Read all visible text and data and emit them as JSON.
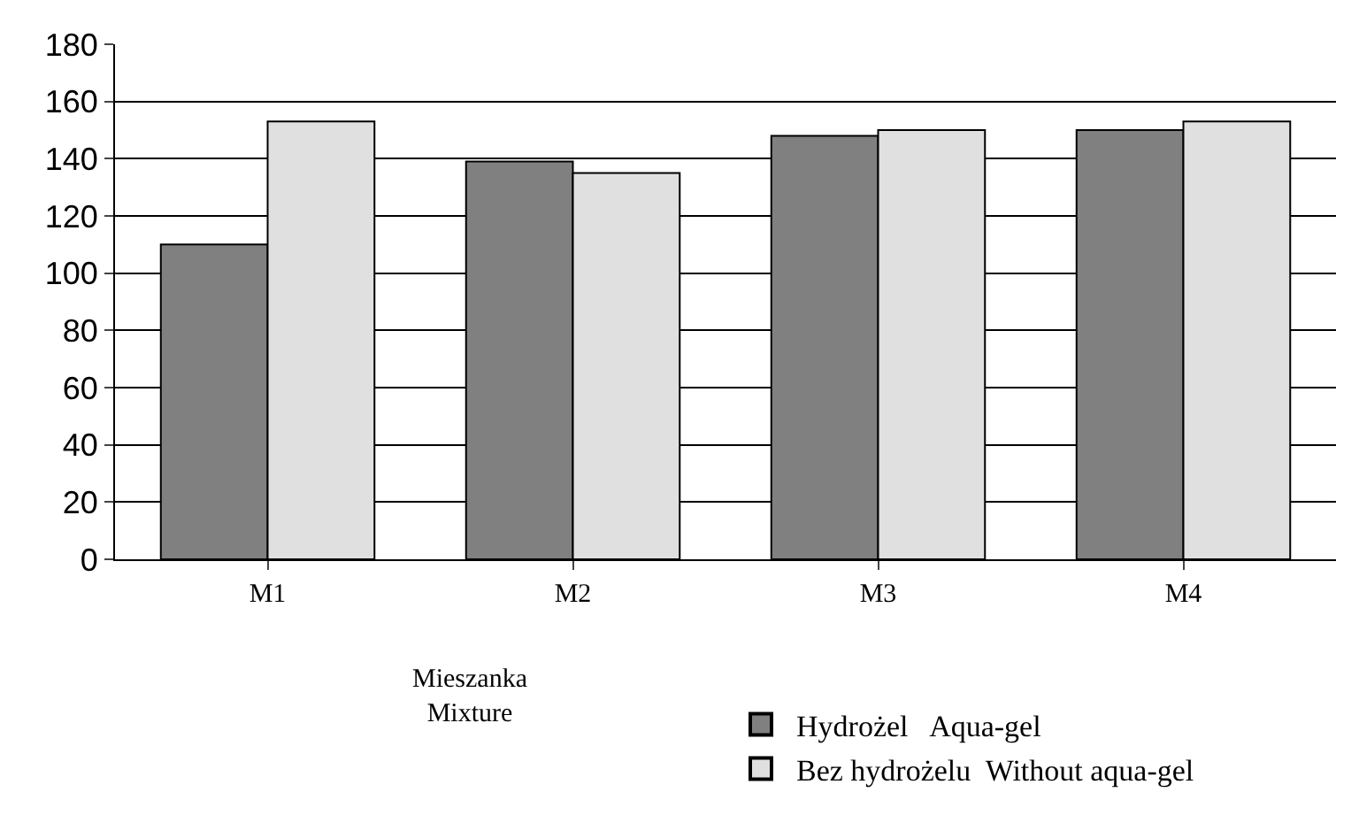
{
  "chart_data": {
    "type": "bar",
    "xlabel": "Mieszanka\nMixture",
    "categories": [
      "M1",
      "M2",
      "M3",
      "M4"
    ],
    "series": [
      {
        "name": "Hydrożel   Aqua-gel",
        "color": "#808080",
        "values": [
          110,
          139,
          148,
          150
        ]
      },
      {
        "name": "Bez hydrożelu  Without aqua-gel",
        "color": "#e0e0e0",
        "values": [
          153,
          135,
          150,
          153
        ]
      }
    ],
    "ylim": [
      0,
      180
    ],
    "yticks": [
      0,
      20,
      40,
      60,
      80,
      100,
      120,
      140,
      160,
      180
    ],
    "grid": "y",
    "legend": "bottom right"
  }
}
